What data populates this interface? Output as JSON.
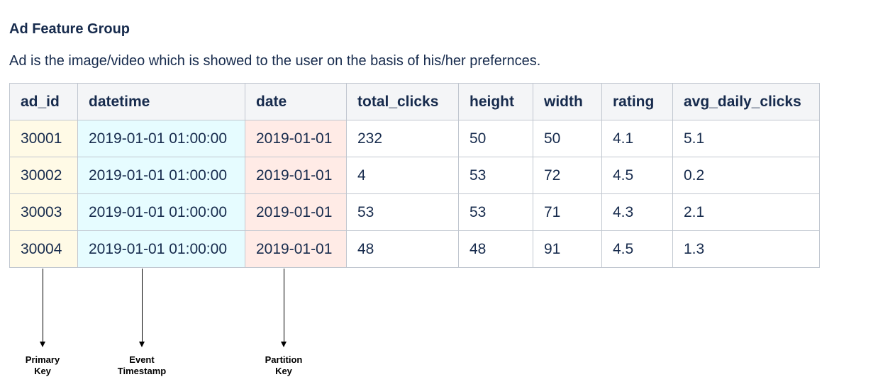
{
  "heading": "Ad Feature Group",
  "description": "Ad is the image/video which is showed to the user on the basis of his/her prefernces.",
  "table": {
    "columns": [
      "ad_id",
      "datetime",
      "date",
      "total_clicks",
      "height",
      "width",
      "rating",
      "avg_daily_clicks"
    ],
    "rows": [
      [
        "30001",
        "2019-01-01 01:00:00",
        "2019-01-01",
        "232",
        "50",
        "50",
        "4.1",
        "5.1"
      ],
      [
        "30002",
        "2019-01-01 01:00:00",
        "2019-01-01",
        "4",
        "53",
        "72",
        "4.5",
        "0.2"
      ],
      [
        "30003",
        "2019-01-01 01:00:00",
        "2019-01-01",
        "53",
        "53",
        "71",
        "4.3",
        "2.1"
      ],
      [
        "30004",
        "2019-01-01 01:00:00",
        "2019-01-01",
        "48",
        "48",
        "91",
        "4.5",
        "1.3"
      ]
    ]
  },
  "annotations": [
    {
      "line1": "Primary",
      "line2": "Key",
      "column": "ad_id"
    },
    {
      "line1": "Event",
      "line2": "Timestamp",
      "column": "datetime"
    },
    {
      "line1": "Partition",
      "line2": "Key",
      "column": "date"
    }
  ],
  "colors": {
    "primary_key": "#fffae6",
    "event_timestamp": "#e6fcff",
    "partition_key": "#ffebe6",
    "header_bg": "#f4f5f7"
  }
}
